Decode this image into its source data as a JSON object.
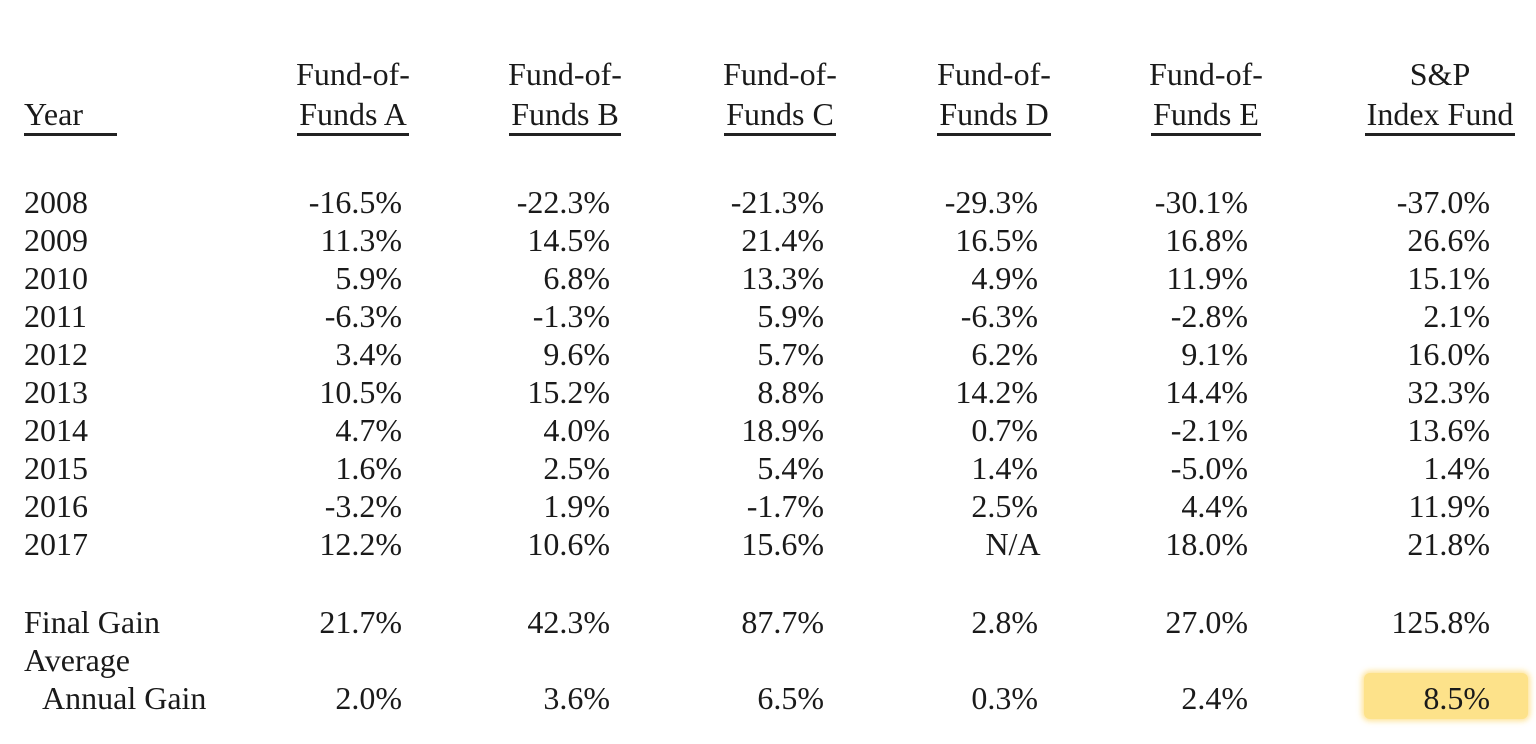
{
  "headers": {
    "year": "Year",
    "funds": [
      {
        "line1": "Fund-of-",
        "line2": "Funds A"
      },
      {
        "line1": "Fund-of-",
        "line2": "Funds B"
      },
      {
        "line1": "Fund-of-",
        "line2": "Funds C"
      },
      {
        "line1": "Fund-of-",
        "line2": "Funds D"
      },
      {
        "line1": "Fund-of-",
        "line2": "Funds E"
      },
      {
        "line1": "S&P",
        "line2": "Index Fund"
      }
    ]
  },
  "rows": [
    {
      "year": "2008",
      "values": [
        "-16.5%",
        "-22.3%",
        "-21.3%",
        "-29.3%",
        "-30.1%",
        "-37.0%"
      ]
    },
    {
      "year": "2009",
      "values": [
        "11.3%",
        "14.5%",
        "21.4%",
        "16.5%",
        "16.8%",
        "26.6%"
      ]
    },
    {
      "year": "2010",
      "values": [
        "5.9%",
        "6.8%",
        "13.3%",
        "4.9%",
        "11.9%",
        "15.1%"
      ]
    },
    {
      "year": "2011",
      "values": [
        "-6.3%",
        "-1.3%",
        "5.9%",
        "-6.3%",
        "-2.8%",
        "2.1%"
      ]
    },
    {
      "year": "2012",
      "values": [
        "3.4%",
        "9.6%",
        "5.7%",
        "6.2%",
        "9.1%",
        "16.0%"
      ]
    },
    {
      "year": "2013",
      "values": [
        "10.5%",
        "15.2%",
        "8.8%",
        "14.2%",
        "14.4%",
        "32.3%"
      ]
    },
    {
      "year": "2014",
      "values": [
        "4.7%",
        "4.0%",
        "18.9%",
        "0.7%",
        "-2.1%",
        "13.6%"
      ]
    },
    {
      "year": "2015",
      "values": [
        "1.6%",
        "2.5%",
        "5.4%",
        "1.4%",
        "-5.0%",
        "1.4%"
      ]
    },
    {
      "year": "2016",
      "values": [
        "-3.2%",
        "1.9%",
        "-1.7%",
        "2.5%",
        "4.4%",
        "11.9%"
      ]
    },
    {
      "year": "2017",
      "values": [
        "12.2%",
        "10.6%",
        "15.6%",
        "N/A",
        "18.0%",
        "21.8%"
      ]
    }
  ],
  "final_gain": {
    "label": "Final Gain",
    "values": [
      "21.7%",
      "42.3%",
      "87.7%",
      "2.8%",
      "27.0%",
      "125.8%"
    ]
  },
  "average_annual_gain": {
    "label_line1": "Average",
    "label_line2": "Annual Gain",
    "values": [
      "2.0%",
      "3.6%",
      "6.5%",
      "0.3%",
      "2.4%",
      "8.5%"
    ]
  },
  "highlight_color": "#fde28a"
}
